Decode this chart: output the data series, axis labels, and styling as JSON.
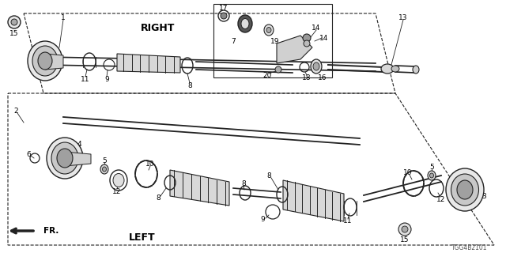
{
  "bg_color": "#ffffff",
  "line_color": "#222222",
  "fig_width": 6.4,
  "fig_height": 3.2,
  "right_label": "RIGHT",
  "left_label": "LEFT",
  "fr_label": "FR.",
  "diagram_code": "TGG4B2101"
}
